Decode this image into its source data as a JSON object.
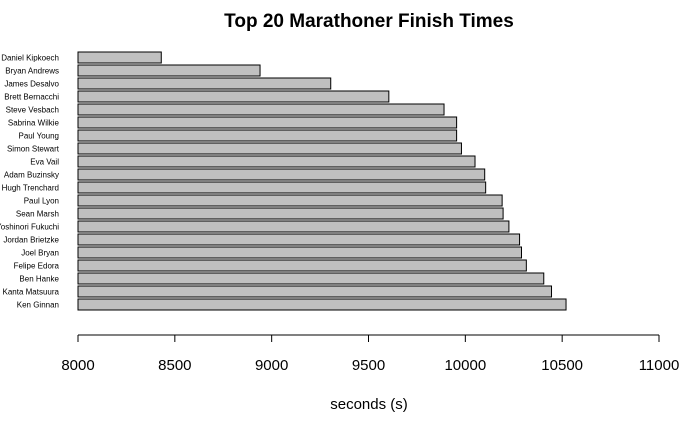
{
  "chart_data": {
    "type": "bar",
    "orientation": "horizontal",
    "title": "Top 20 Marathoner Finish Times",
    "xlabel": "seconds (s)",
    "ylabel": "",
    "xlim": [
      8000,
      11000
    ],
    "xticks": [
      8000,
      8500,
      9000,
      9500,
      10000,
      10500,
      11000
    ],
    "grid": false,
    "bar_color": "#c0c0c0",
    "categories": [
      "Daniel Kipkoech",
      "Bryan Andrews",
      "James Desalvo",
      "Brett Bernacchi",
      "Steve Vesbach",
      "Sabrina Wilkie",
      "Paul Young",
      "Simon Stewart",
      "Eva Vail",
      "Adam Buzinsky",
      "Hugh Trenchard",
      "Paul Lyon",
      "Sean Marsh",
      "Yoshinori Fukuchi",
      "Jordan Brietzke",
      "Joel Bryan",
      "Felipe Edora",
      "Ben Hanke",
      "Kanta Matsuura",
      "Ken Ginnan"
    ],
    "values": [
      8430,
      8940,
      9305,
      9605,
      9890,
      9955,
      9955,
      9980,
      10050,
      10100,
      10105,
      10190,
      10195,
      10225,
      10280,
      10290,
      10315,
      10405,
      10445,
      10520
    ]
  }
}
